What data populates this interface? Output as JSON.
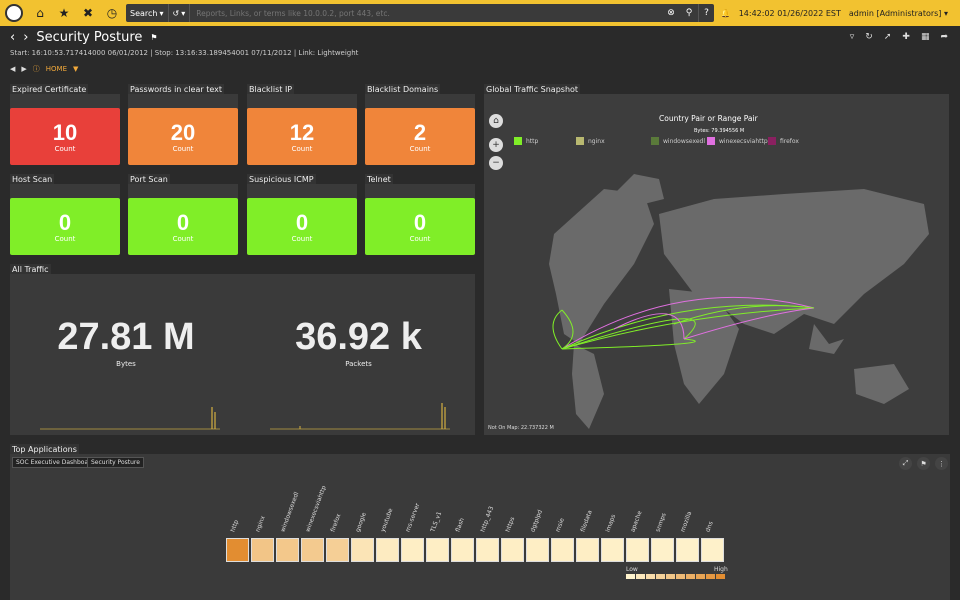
{
  "topbar": {
    "search_mode": "Search",
    "search_placeholder": "Reports, Links, or terms like 10.0.0.2, port 443, etc.",
    "help": "?",
    "datetime": "14:42:02 01/26/2022 EST",
    "user": "admin [Administrators]"
  },
  "header": {
    "title": "Security Posture",
    "subtitle": "Start: 16:10:53.717414000 06/01/2012 | Stop: 13:16:33.189454001 07/11/2012 | Link: Lightweight",
    "home": "HOME"
  },
  "stats": [
    {
      "label": "Expired Certificate",
      "value": "10",
      "unit": "Count",
      "color": "#e8403a"
    },
    {
      "label": "Passwords in clear text",
      "value": "20",
      "unit": "Count",
      "color": "#f0853a"
    },
    {
      "label": "Blacklist IP",
      "value": "12",
      "unit": "Count",
      "color": "#f0853a"
    },
    {
      "label": "Blacklist Domains",
      "value": "2",
      "unit": "Count",
      "color": "#f0853a"
    },
    {
      "label": "Host Scan",
      "value": "0",
      "unit": "Count",
      "color": "#80ee28"
    },
    {
      "label": "Port Scan",
      "value": "0",
      "unit": "Count",
      "color": "#80ee28"
    },
    {
      "label": "Suspicious ICMP",
      "value": "0",
      "unit": "Count",
      "color": "#80ee28"
    },
    {
      "label": "Telnet",
      "value": "0",
      "unit": "Count",
      "color": "#80ee28"
    }
  ],
  "all_traffic": {
    "label": "All Traffic",
    "bytes_value": "27.81 M",
    "bytes_label": "Bytes",
    "packets_value": "36.92 k",
    "packets_label": "Packets"
  },
  "map": {
    "label": "Global Traffic Snapshot",
    "title": "Country Pair or Range Pair",
    "bytes": "Bytes: 79.394556 M",
    "legend": [
      {
        "name": "http",
        "color": "#80ee28"
      },
      {
        "name": "nginx",
        "color": "#b8b870"
      },
      {
        "name": "windowsexedl",
        "color": "#5a7a3a"
      },
      {
        "name": "winexecsviahttp",
        "color": "#e070e0"
      },
      {
        "name": "firefox",
        "color": "#8a2060"
      }
    ],
    "not_on_map": "Not On Map: 22.737322 M"
  },
  "top_apps": {
    "label": "Top Applications",
    "tags": [
      "SOC Executive Dashboard",
      "Security Posture"
    ],
    "apps": [
      {
        "name": "http",
        "level": 1.0
      },
      {
        "name": "nginx",
        "level": 0.45
      },
      {
        "name": "windowsexedl",
        "level": 0.42
      },
      {
        "name": "winexecsviahttp",
        "level": 0.4
      },
      {
        "name": "firefox",
        "level": 0.35
      },
      {
        "name": "google",
        "level": 0.15
      },
      {
        "name": "youtube",
        "level": 0.08
      },
      {
        "name": "ms-server",
        "level": 0.05
      },
      {
        "name": "TLS_v1",
        "level": 0.05
      },
      {
        "name": "flash",
        "level": 0.05
      },
      {
        "name": "http_443",
        "level": 0.05
      },
      {
        "name": "https",
        "level": 0.05
      },
      {
        "name": "dgtplpd",
        "level": 0.05
      },
      {
        "name": "msie",
        "level": 0.05
      },
      {
        "name": "filedata",
        "level": 0.05
      },
      {
        "name": "imaps",
        "level": 0.03
      },
      {
        "name": "apache",
        "level": 0.03
      },
      {
        "name": "snmps",
        "level": 0.02
      },
      {
        "name": "mozilla",
        "level": 0.02
      },
      {
        "name": "dns",
        "level": 0.02
      }
    ],
    "legend_low": "Low",
    "legend_high": "High"
  }
}
